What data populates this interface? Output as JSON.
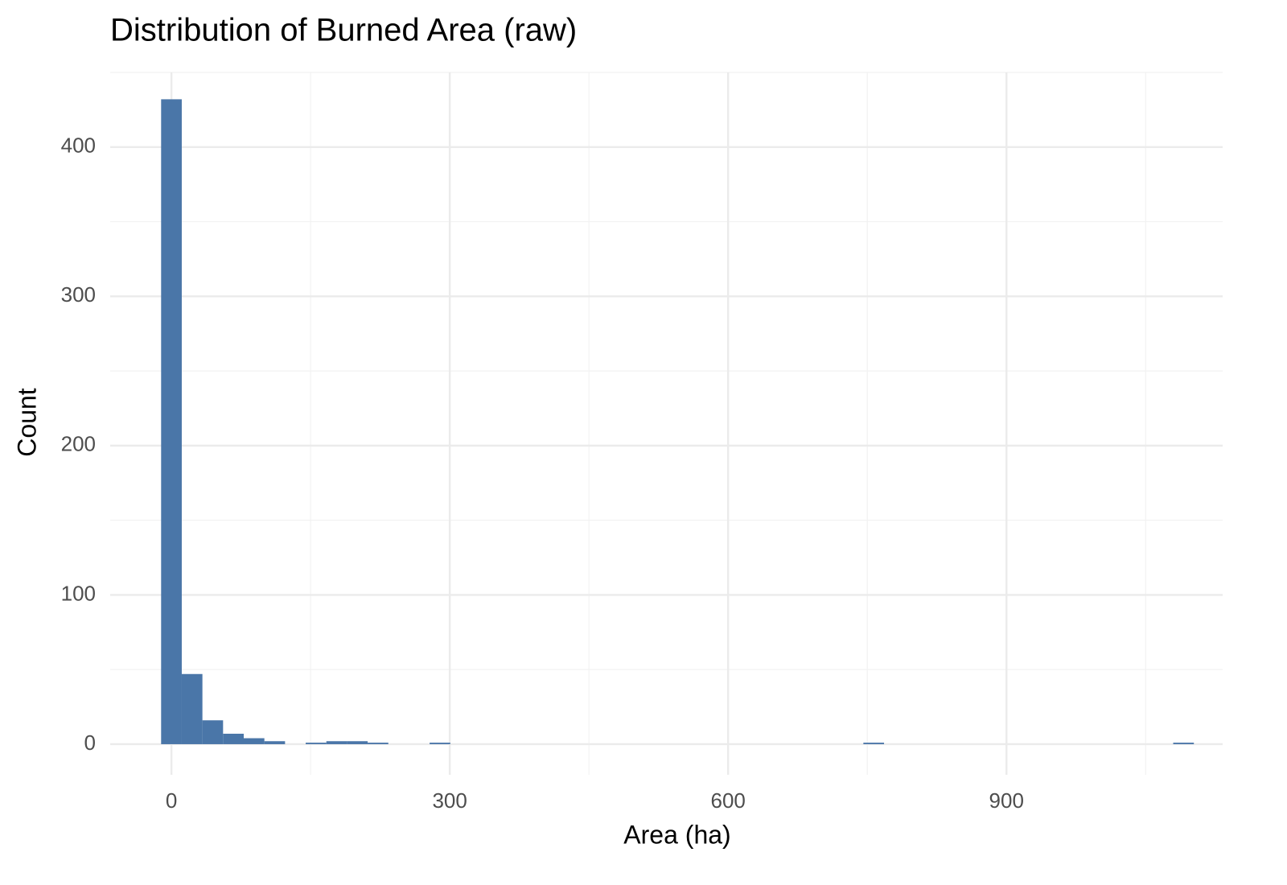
{
  "chart_data": {
    "type": "histogram",
    "title": "Distribution of Burned Area (raw)",
    "x_label": "Area (ha)",
    "y_label": "Count",
    "bins": [
      -11.13,
      11.13,
      33.39,
      55.65,
      77.92,
      100.18,
      122.44,
      144.7,
      166.96,
      189.23,
      211.49,
      233.75,
      256.01,
      278.27,
      300.54,
      322.8,
      345.06,
      367.32,
      389.58,
      411.85,
      434.11,
      456.37,
      478.63,
      500.89,
      523.15,
      545.42,
      567.68,
      589.94,
      612.2,
      634.46,
      656.73,
      678.99,
      701.25,
      723.51,
      745.77,
      768.04,
      790.3,
      812.56,
      834.82,
      857.08,
      879.35,
      901.61,
      923.87,
      946.13,
      968.39,
      990.66,
      1012.92,
      1035.18,
      1057.44,
      1079.7,
      1101.97
    ],
    "values": [
      432,
      47,
      16,
      7,
      4,
      2,
      0,
      1,
      2,
      2,
      1,
      0,
      0,
      1,
      0,
      0,
      0,
      0,
      0,
      0,
      0,
      0,
      0,
      0,
      0,
      0,
      0,
      0,
      0,
      0,
      0,
      0,
      0,
      0,
      1,
      0,
      0,
      0,
      0,
      0,
      0,
      0,
      0,
      0,
      0,
      0,
      0,
      0,
      0,
      1
    ],
    "color": "#4a76a8",
    "xlim": [
      -66,
      1133
    ],
    "xticks": [
      0,
      300,
      600,
      900
    ],
    "xminorticks": [
      150,
      450,
      750,
      1050
    ],
    "ylim": [
      -20.5,
      450
    ],
    "yticks": [
      0,
      100,
      200,
      300,
      400
    ],
    "yminorticks": [
      50,
      150,
      250,
      350,
      450
    ],
    "grid": true
  }
}
